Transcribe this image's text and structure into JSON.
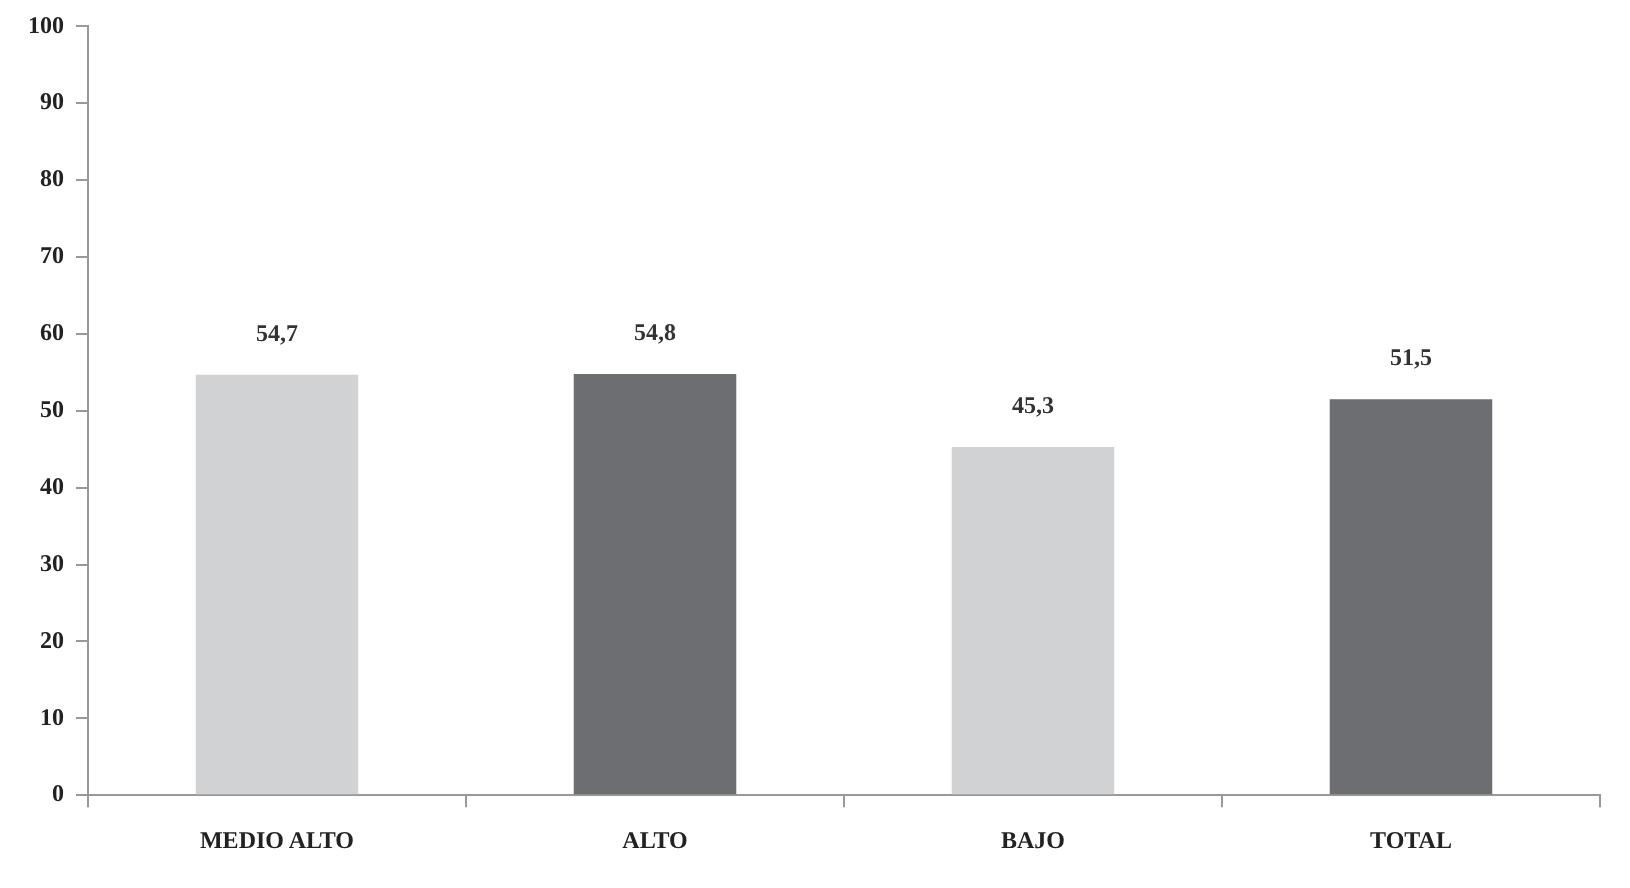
{
  "chart_data": {
    "type": "bar",
    "categories": [
      "MEDIO ALTO",
      "ALTO",
      "BAJO",
      "TOTAL"
    ],
    "values": [
      54.7,
      54.8,
      45.3,
      51.5
    ],
    "colors": [
      "#d1d2d4",
      "#6d6e71",
      "#d1d2d4",
      "#6d6e71"
    ],
    "value_labels": [
      "54,7",
      "54,8",
      "45,3",
      "51,5"
    ],
    "ylim": [
      0,
      100
    ],
    "yticks": [
      0,
      10,
      20,
      30,
      40,
      50,
      60,
      70,
      80,
      90,
      100
    ],
    "grid": false,
    "legend": false
  }
}
